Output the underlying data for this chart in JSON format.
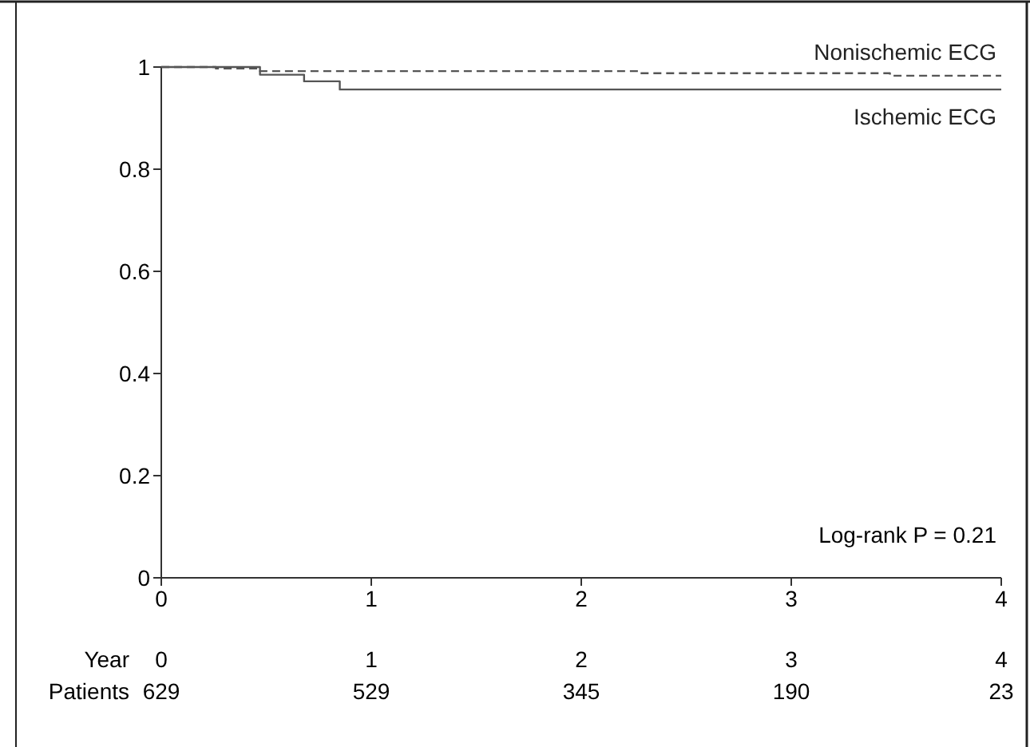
{
  "chart_data": {
    "type": "step",
    "xlim": [
      0,
      4
    ],
    "xticks": [
      0,
      1,
      2,
      3,
      4
    ],
    "ylim": [
      0,
      1
    ],
    "yticks": [
      0,
      0.2,
      0.4,
      0.6,
      0.8,
      1
    ],
    "grid": false,
    "series": [
      {
        "name": "Nonischemic ECG",
        "color": "#555555",
        "line_style": "dashed",
        "x": [
          0,
          0.26,
          0.47,
          2.27,
          3.47,
          4
        ],
        "values": [
          1,
          0.997,
          0.992,
          0.988,
          0.983,
          0.983
        ]
      },
      {
        "name": "Ischemic ECG",
        "color": "#555555",
        "line_style": "solid",
        "x": [
          0,
          0.47,
          0.68,
          0.85,
          4
        ],
        "values": [
          1,
          0.985,
          0.972,
          0.956,
          0.956
        ]
      }
    ],
    "annotations": [
      "Log-rank P = 0.21",
      "Year",
      "0",
      "1",
      "2",
      "3",
      "4",
      "Patients",
      "629",
      "529",
      "345",
      "190",
      "23"
    ]
  }
}
